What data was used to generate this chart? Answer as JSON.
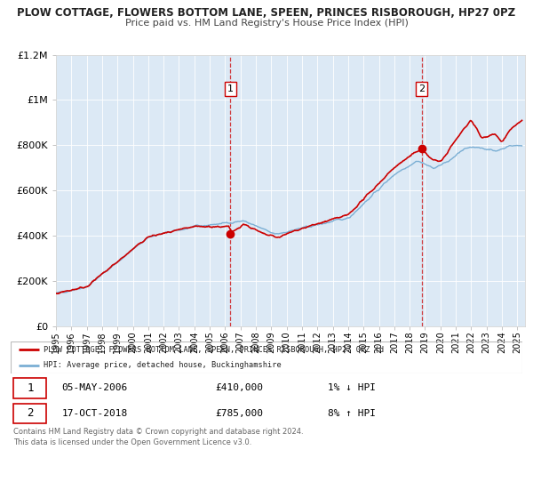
{
  "title": "PLOW COTTAGE, FLOWERS BOTTOM LANE, SPEEN, PRINCES RISBOROUGH, HP27 0PZ",
  "subtitle": "Price paid vs. HM Land Registry's House Price Index (HPI)",
  "bg_color": "#dce9f5",
  "outer_bg_color": "#ffffff",
  "red_line_color": "#cc0000",
  "blue_line_color": "#7bafd4",
  "marker1_x": 2006.35,
  "marker1_y": 410000,
  "marker2_x": 2018.79,
  "marker2_y": 785000,
  "annotation1_date": "05-MAY-2006",
  "annotation1_price": "£410,000",
  "annotation1_hpi": "1% ↓ HPI",
  "annotation2_date": "17-OCT-2018",
  "annotation2_price": "£785,000",
  "annotation2_hpi": "8% ↑ HPI",
  "legend_red_label": "PLOW COTTAGE, FLOWERS BOTTOM LANE, SPEEN, PRINCES RISBOROUGH, HP27 0PZ (d",
  "legend_blue_label": "HPI: Average price, detached house, Buckinghamshire",
  "footer1": "Contains HM Land Registry data © Crown copyright and database right 2024.",
  "footer2": "This data is licensed under the Open Government Licence v3.0.",
  "ylim": [
    0,
    1200000
  ],
  "yticks": [
    0,
    200000,
    400000,
    600000,
    800000,
    1000000,
    1200000
  ],
  "ytick_labels": [
    "£0",
    "£200K",
    "£400K",
    "£600K",
    "£800K",
    "£1M",
    "£1.2M"
  ],
  "xmin": 1995,
  "xmax": 2025.5,
  "xtick_years": [
    1995,
    1996,
    1997,
    1998,
    1999,
    2000,
    2001,
    2002,
    2003,
    2004,
    2005,
    2006,
    2007,
    2008,
    2009,
    2010,
    2011,
    2012,
    2013,
    2014,
    2015,
    2016,
    2017,
    2018,
    2019,
    2020,
    2021,
    2022,
    2023,
    2024,
    2025
  ]
}
